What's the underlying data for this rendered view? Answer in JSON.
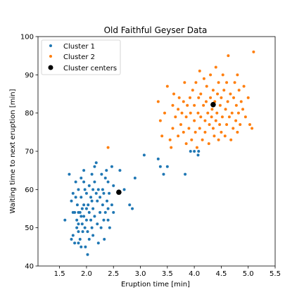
{
  "chart_data": {
    "type": "scatter",
    "title": "Old Faithful Geyser Data",
    "xlabel": "Eruption time [min]",
    "ylabel": "Waiting time to next eruption [min]",
    "xlim": [
      1.1,
      5.5
    ],
    "ylim": [
      40,
      100
    ],
    "xticks": [
      1.5,
      2.0,
      2.5,
      3.0,
      3.5,
      4.0,
      4.5,
      5.0,
      5.5
    ],
    "xtick_labels": [
      "1.5",
      "2.0",
      "2.5",
      "3.0",
      "3.5",
      "4.0",
      "4.5",
      "5.0",
      "5.5"
    ],
    "yticks": [
      40,
      50,
      60,
      70,
      80,
      90,
      100
    ],
    "ytick_labels": [
      "40",
      "50",
      "60",
      "70",
      "80",
      "90",
      "100"
    ],
    "grid": false,
    "legend_position": "top-left",
    "series": [
      {
        "name": "Cluster 1",
        "color": "#1f77b4",
        "marker": "dot",
        "points": [
          [
            1.6,
            52
          ],
          [
            1.68,
            64
          ],
          [
            1.72,
            47
          ],
          [
            1.72,
            57
          ],
          [
            1.75,
            54
          ],
          [
            1.75,
            48
          ],
          [
            1.75,
            59
          ],
          [
            1.78,
            54
          ],
          [
            1.78,
            46
          ],
          [
            1.8,
            62
          ],
          [
            1.8,
            58
          ],
          [
            1.82,
            52
          ],
          [
            1.82,
            50
          ],
          [
            1.83,
            56
          ],
          [
            1.85,
            54
          ],
          [
            1.85,
            51
          ],
          [
            1.85,
            49
          ],
          [
            1.85,
            46
          ],
          [
            1.85,
            60
          ],
          [
            1.88,
            54
          ],
          [
            1.88,
            47
          ],
          [
            1.9,
            63
          ],
          [
            1.9,
            58
          ],
          [
            1.9,
            53
          ],
          [
            1.9,
            45
          ],
          [
            1.92,
            55
          ],
          [
            1.92,
            51
          ],
          [
            1.93,
            49
          ],
          [
            1.95,
            65
          ],
          [
            1.95,
            56
          ],
          [
            1.95,
            53
          ],
          [
            1.95,
            62
          ],
          [
            1.97,
            60
          ],
          [
            1.97,
            50
          ],
          [
            1.98,
            45
          ],
          [
            2.0,
            55
          ],
          [
            2.0,
            59
          ],
          [
            2.0,
            52
          ],
          [
            2.02,
            49
          ],
          [
            2.02,
            43
          ],
          [
            2.03,
            56
          ],
          [
            2.05,
            61
          ],
          [
            2.05,
            54
          ],
          [
            2.05,
            47
          ],
          [
            2.08,
            58
          ],
          [
            2.08,
            52
          ],
          [
            2.1,
            64
          ],
          [
            2.1,
            57
          ],
          [
            2.1,
            50
          ],
          [
            2.12,
            55
          ],
          [
            2.12,
            60
          ],
          [
            2.12,
            48
          ],
          [
            2.15,
            66
          ],
          [
            2.15,
            53
          ],
          [
            2.15,
            62
          ],
          [
            2.18,
            67
          ],
          [
            2.18,
            59
          ],
          [
            2.2,
            57
          ],
          [
            2.2,
            51
          ],
          [
            2.22,
            46
          ],
          [
            2.22,
            60
          ],
          [
            2.25,
            58
          ],
          [
            2.25,
            54
          ],
          [
            2.27,
            50
          ],
          [
            2.28,
            64
          ],
          [
            2.3,
            60
          ],
          [
            2.3,
            56
          ],
          [
            2.32,
            59
          ],
          [
            2.32,
            52
          ],
          [
            2.33,
            47
          ],
          [
            2.35,
            63
          ],
          [
            2.35,
            54
          ],
          [
            2.37,
            65
          ],
          [
            2.38,
            57
          ],
          [
            2.4,
            62
          ],
          [
            2.4,
            55
          ],
          [
            2.4,
            52
          ],
          [
            2.42,
            59
          ],
          [
            2.43,
            50
          ],
          [
            2.47,
            66
          ],
          [
            2.47,
            56
          ],
          [
            2.5,
            61
          ],
          [
            2.5,
            54
          ],
          [
            2.62,
            65
          ],
          [
            2.7,
            60
          ],
          [
            2.8,
            56
          ],
          [
            2.85,
            55
          ],
          [
            2.9,
            63
          ],
          [
            3.07,
            69
          ],
          [
            3.33,
            68
          ],
          [
            3.37,
            66
          ],
          [
            3.43,
            64
          ],
          [
            3.5,
            66
          ],
          [
            3.83,
            64
          ],
          [
            3.93,
            70
          ],
          [
            4.0,
            70
          ],
          [
            4.07,
            69
          ],
          [
            4.08,
            70
          ]
        ]
      },
      {
        "name": "Cluster 2",
        "color": "#ff7f0e",
        "marker": "dot",
        "points": [
          [
            2.4,
            71
          ],
          [
            3.33,
            83
          ],
          [
            3.37,
            78
          ],
          [
            3.4,
            74
          ],
          [
            3.45,
            80
          ],
          [
            3.5,
            87
          ],
          [
            3.55,
            73
          ],
          [
            3.57,
            71
          ],
          [
            3.6,
            76
          ],
          [
            3.6,
            82
          ],
          [
            3.62,
            85
          ],
          [
            3.65,
            79
          ],
          [
            3.7,
            74
          ],
          [
            3.7,
            81
          ],
          [
            3.72,
            84
          ],
          [
            3.75,
            77
          ],
          [
            3.77,
            80
          ],
          [
            3.8,
            75
          ],
          [
            3.8,
            83
          ],
          [
            3.82,
            88
          ],
          [
            3.85,
            79
          ],
          [
            3.85,
            72
          ],
          [
            3.87,
            82
          ],
          [
            3.9,
            76
          ],
          [
            3.92,
            84
          ],
          [
            3.93,
            80
          ],
          [
            3.95,
            73
          ],
          [
            3.97,
            86
          ],
          [
            4.0,
            78
          ],
          [
            4.0,
            82
          ],
          [
            4.02,
            75
          ],
          [
            4.03,
            88
          ],
          [
            4.05,
            71
          ],
          [
            4.07,
            80
          ],
          [
            4.08,
            84
          ],
          [
            4.1,
            76
          ],
          [
            4.1,
            91
          ],
          [
            4.12,
            79
          ],
          [
            4.12,
            85
          ],
          [
            4.15,
            73
          ],
          [
            4.17,
            82
          ],
          [
            4.18,
            89
          ],
          [
            4.2,
            78
          ],
          [
            4.2,
            75
          ],
          [
            4.22,
            83
          ],
          [
            4.23,
            87
          ],
          [
            4.25,
            80
          ],
          [
            4.27,
            72
          ],
          [
            4.28,
            77
          ],
          [
            4.3,
            84
          ],
          [
            4.3,
            90
          ],
          [
            4.32,
            79
          ],
          [
            4.33,
            81
          ],
          [
            4.35,
            76
          ],
          [
            4.35,
            86
          ],
          [
            4.37,
            74
          ],
          [
            4.38,
            83
          ],
          [
            4.4,
            78
          ],
          [
            4.4,
            92
          ],
          [
            4.42,
            80
          ],
          [
            4.43,
            85
          ],
          [
            4.45,
            73
          ],
          [
            4.45,
            88
          ],
          [
            4.47,
            77
          ],
          [
            4.48,
            82
          ],
          [
            4.5,
            75
          ],
          [
            4.5,
            84
          ],
          [
            4.52,
            79
          ],
          [
            4.53,
            90
          ],
          [
            4.55,
            86
          ],
          [
            4.57,
            74
          ],
          [
            4.58,
            81
          ],
          [
            4.6,
            77
          ],
          [
            4.6,
            88
          ],
          [
            4.62,
            83
          ],
          [
            4.63,
            95
          ],
          [
            4.65,
            79
          ],
          [
            4.67,
            85
          ],
          [
            4.68,
            73
          ],
          [
            4.7,
            80
          ],
          [
            4.72,
            76
          ],
          [
            4.73,
            84
          ],
          [
            4.75,
            88
          ],
          [
            4.77,
            78
          ],
          [
            4.78,
            82
          ],
          [
            4.8,
            75
          ],
          [
            4.8,
            90
          ],
          [
            4.82,
            80
          ],
          [
            4.83,
            86
          ],
          [
            4.85,
            77
          ],
          [
            4.87,
            83
          ],
          [
            4.9,
            81
          ],
          [
            4.92,
            87
          ],
          [
            4.95,
            79
          ],
          [
            5.0,
            84
          ],
          [
            5.03,
            77
          ],
          [
            5.07,
            76
          ],
          [
            5.1,
            96
          ]
        ]
      }
    ],
    "cluster_centers": {
      "name": "Cluster centers",
      "color": "#000000",
      "points": [
        [
          2.6,
          59.3
        ],
        [
          4.35,
          82.2
        ]
      ]
    }
  }
}
